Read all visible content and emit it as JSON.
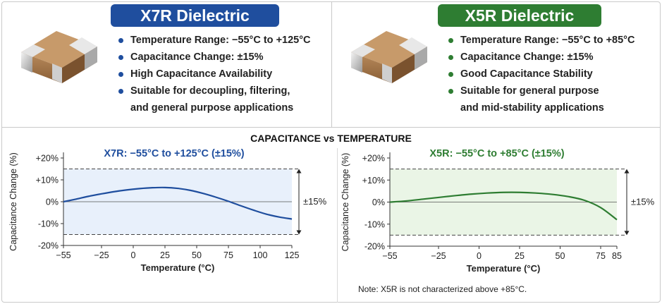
{
  "header_left": {
    "title": "X7R Dielectric",
    "accent": "#1f4e9e",
    "bullets": [
      "Temperature Range: −55°C to +125°C",
      "Capacitance Change: ±15%",
      "High Capacitance Availability",
      "Suitable for decoupling, filtering,",
      "and general purpose applications"
    ]
  },
  "header_right": {
    "title": "X5R Dielectric",
    "accent": "#2e7d32",
    "bullets": [
      "Temperature Range: −55°C to +85°C",
      "Capacitance Change: ±15%",
      "Good Capacitance Stability",
      "Suitable for general purpose",
      "and mid-stability applications"
    ]
  },
  "section_title": "CAPACITANCE vs TEMPERATURE",
  "note": "Note: X5R is not characterized above +85°C.",
  "chart_data": [
    {
      "type": "line",
      "title": "X7R: −55°C to +125°C (±15%)",
      "xlabel": "Temperature (°C)",
      "ylabel": "Capacitance Change (%)",
      "xlim": [
        -55,
        125
      ],
      "ylim": [
        -20,
        20
      ],
      "xticks": [
        -55,
        -25,
        0,
        25,
        50,
        75,
        100,
        125
      ],
      "xtick_labels": [
        "−55",
        "−25",
        "0",
        "25",
        "50",
        "75",
        "100",
        "125"
      ],
      "yticks": [
        20,
        10,
        0,
        -10,
        -20
      ],
      "ytick_labels": [
        "+20%",
        "+10%",
        "0%",
        "-10%",
        "-20%"
      ],
      "band": [
        -15,
        15
      ],
      "band_label": "±15%",
      "color": "#1f4e9e",
      "band_fill": "#e8f0fb",
      "series": [
        {
          "x": [
            -55,
            -45,
            -35,
            -25,
            -15,
            -5,
            5,
            15,
            25,
            35,
            45,
            55,
            65,
            75,
            85,
            95,
            105,
            115,
            125
          ],
          "values": [
            0,
            1.2,
            2.5,
            3.6,
            4.6,
            5.4,
            6.0,
            6.4,
            6.5,
            6.1,
            5.2,
            3.8,
            2.1,
            0.2,
            -1.9,
            -3.9,
            -5.7,
            -7.0,
            -7.9
          ]
        }
      ]
    },
    {
      "type": "line",
      "title": "X5R: −55°C to +85°C (±15%)",
      "xlabel": "Temperature (°C)",
      "ylabel": "Capacitance Change (%)",
      "xlim": [
        -55,
        85
      ],
      "ylim": [
        -20,
        20
      ],
      "xticks": [
        -55,
        -25,
        0,
        25,
        50,
        75,
        85
      ],
      "xtick_labels": [
        "−55",
        "−25",
        "0",
        "25",
        "50",
        "75",
        "85"
      ],
      "yticks": [
        20,
        10,
        0,
        -10,
        -20
      ],
      "ytick_labels": [
        "+20%",
        "+10%",
        "0%",
        "-10%",
        "-20%"
      ],
      "band": [
        -15,
        15
      ],
      "band_label": "±15%",
      "color": "#2e7d32",
      "band_fill": "#eaf5e6",
      "series": [
        {
          "x": [
            -55,
            -45,
            -35,
            -25,
            -15,
            -5,
            5,
            15,
            25,
            35,
            45,
            55,
            65,
            75,
            85
          ],
          "values": [
            0,
            0.5,
            1.3,
            2.1,
            2.9,
            3.6,
            4.1,
            4.4,
            4.4,
            4.1,
            3.5,
            2.5,
            0.8,
            -2.5,
            -8.0
          ]
        }
      ]
    }
  ]
}
